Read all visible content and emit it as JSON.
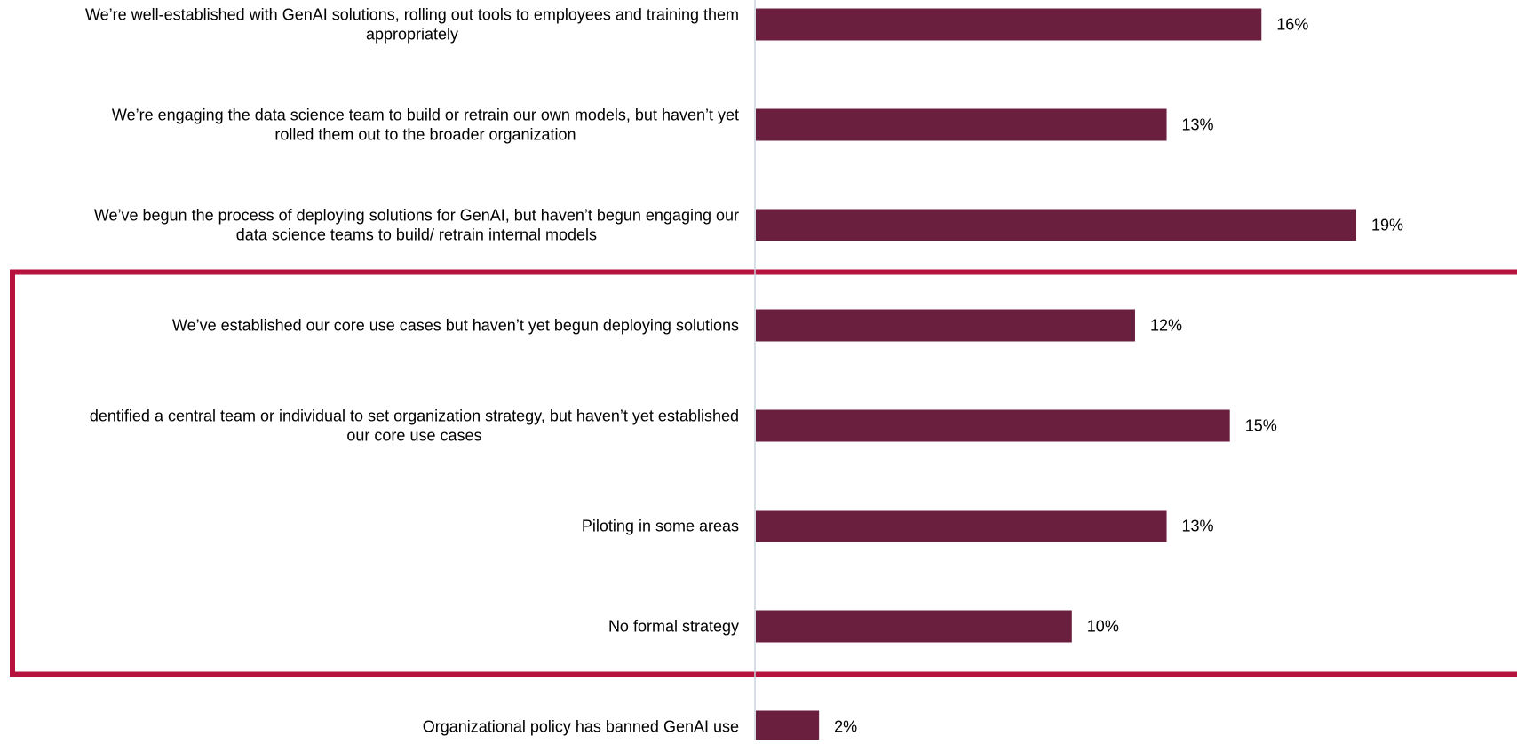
{
  "chart_data": {
    "type": "bar",
    "orientation": "horizontal",
    "categories": [
      "We’re well-established with GenAI solutions, rolling out tools to employees and training them appropriately",
      "We’re engaging the data science team to build or retrain our own models, but haven’t yet rolled them out to the broader organization",
      "We’ve begun the process of deploying solutions for GenAI, but haven’t begun engaging our data science teams to build/ retrain internal models",
      "We’ve established our core use cases but haven’t yet begun deploying solutions",
      "dentified a central team or individual to set organization strategy, but haven’t yet established our core use cases",
      "Piloting in some areas",
      "No formal strategy",
      "Organizational policy has banned GenAI use"
    ],
    "label_lines": [
      [
        "We’re well-established with GenAI solutions, rolling out tools to employees and training them",
        "appropriately"
      ],
      [
        "We’re engaging the data science team to build or retrain our own models, but haven’t yet",
        "rolled them out to the broader organization"
      ],
      [
        "We’ve begun the process of deploying solutions for GenAI, but haven’t begun engaging our",
        "data science teams to build/ retrain internal models"
      ],
      [
        "We’ve established our core use cases but haven’t yet begun deploying solutions"
      ],
      [
        "dentified a central team or individual to set organization strategy, but haven’t yet established",
        "our core use cases"
      ],
      [
        "Piloting in some areas"
      ],
      [
        "No formal strategy"
      ],
      [
        "Organizational policy has banned GenAI use"
      ]
    ],
    "values": [
      16,
      13,
      19,
      12,
      15,
      13,
      10,
      2
    ],
    "value_labels": [
      "16%",
      "13%",
      "19%",
      "12%",
      "15%",
      "13%",
      "10%",
      "2%"
    ],
    "unit": "%",
    "xlim": [
      0,
      20
    ],
    "grid": false,
    "legend": "none",
    "title": "",
    "xlabel": "",
    "ylabel": "",
    "highlighted_categories": [
      3,
      4,
      5,
      6
    ],
    "colors": {
      "bar": "#6b1f3f",
      "highlight_box": "#b5123e",
      "axis_line": "#c9d3e0",
      "text": "#000000"
    }
  }
}
